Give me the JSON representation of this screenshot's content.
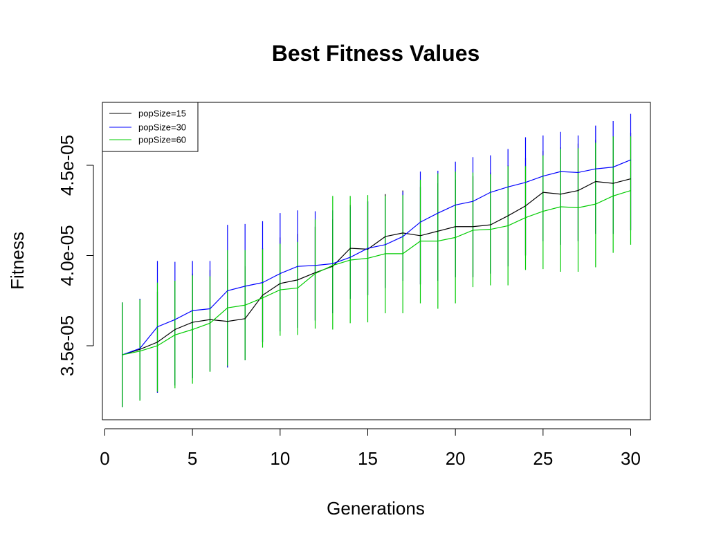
{
  "chart_data": {
    "type": "line",
    "title": "Best Fitness Values",
    "xlabel": "Generations",
    "ylabel": "Fitness",
    "xlim": [
      0,
      30
    ],
    "ylim": [
      3.1e-05,
      4.85e-05
    ],
    "x_ticks": [
      0,
      5,
      10,
      15,
      20,
      25,
      30
    ],
    "x_tick_labels": [
      "0",
      "5",
      "10",
      "15",
      "20",
      "25",
      "30"
    ],
    "y_ticks": [
      3.5e-05,
      4e-05,
      4.5e-05
    ],
    "y_tick_labels": [
      "3.5e-05",
      "4.0e-05",
      "4.5e-05"
    ],
    "grid": false,
    "legend_position": "top-left",
    "x": [
      1,
      2,
      3,
      4,
      5,
      6,
      7,
      8,
      9,
      10,
      11,
      12,
      13,
      14,
      15,
      16,
      17,
      18,
      19,
      20,
      21,
      22,
      23,
      24,
      25,
      26,
      27,
      28,
      29,
      30
    ],
    "series": [
      {
        "name": "popSize=15",
        "color": "#000000",
        "values": [
          3.45e-05,
          3.48e-05,
          3.52e-05,
          3.59e-05,
          3.63e-05,
          3.645e-05,
          3.635e-05,
          3.65e-05,
          3.78e-05,
          3.845e-05,
          3.865e-05,
          3.905e-05,
          3.94e-05,
          4.04e-05,
          4.035e-05,
          4.105e-05,
          4.125e-05,
          4.11e-05,
          4.135e-05,
          4.16e-05,
          4.16e-05,
          4.17e-05,
          4.22e-05,
          4.275e-05,
          4.35e-05,
          4.34e-05,
          4.36e-05,
          4.41e-05,
          4.4e-05,
          4.425e-05
        ],
        "upper": [
          3.74e-05,
          3.76e-05,
          3.8e-05,
          3.86e-05,
          3.9e-05,
          3.92e-05,
          3.92e-05,
          3.94e-05,
          4.04e-05,
          4.1e-05,
          4.12e-05,
          4.16e-05,
          4.2e-05,
          4.28e-05,
          4.3e-05,
          4.34e-05,
          4.36e-05,
          4.38e-05,
          4.4e-05,
          4.42e-05,
          4.44e-05,
          4.46e-05,
          4.5e-05,
          4.54e-05,
          4.58e-05,
          4.6e-05,
          4.62e-05,
          4.64e-05,
          4.66e-05,
          4.68e-05
        ],
        "lower": [
          3.16e-05,
          3.2e-05,
          3.24e-05,
          3.28e-05,
          3.32e-05,
          3.36e-05,
          3.38e-05,
          3.42e-05,
          3.52e-05,
          3.58e-05,
          3.6e-05,
          3.64e-05,
          3.68e-05,
          3.76e-05,
          3.78e-05,
          3.82e-05,
          3.86e-05,
          3.84e-05,
          3.86e-05,
          3.88e-05,
          3.88e-05,
          3.9e-05,
          3.94e-05,
          4e-05,
          4.08e-05,
          4.06e-05,
          4.08e-05,
          4.12e-05,
          4.12e-05,
          4.14e-05
        ]
      },
      {
        "name": "popSize=30",
        "color": "#0000ff",
        "values": [
          3.45e-05,
          3.485e-05,
          3.605e-05,
          3.645e-05,
          3.695e-05,
          3.705e-05,
          3.805e-05,
          3.83e-05,
          3.85e-05,
          3.9e-05,
          3.94e-05,
          3.945e-05,
          3.955e-05,
          3.99e-05,
          4.04e-05,
          4.06e-05,
          4.105e-05,
          4.185e-05,
          4.235e-05,
          4.28e-05,
          4.3e-05,
          4.35e-05,
          4.38e-05,
          4.405e-05,
          4.44e-05,
          4.465e-05,
          4.46e-05,
          4.48e-05,
          4.49e-05,
          4.53e-05
        ],
        "upper": [
          3.74e-05,
          3.76e-05,
          3.97e-05,
          3.965e-05,
          3.97e-05,
          3.97e-05,
          4.17e-05,
          4.175e-05,
          4.19e-05,
          4.235e-05,
          4.25e-05,
          4.245e-05,
          4.25e-05,
          4.27e-05,
          4.3e-05,
          4.32e-05,
          4.355e-05,
          4.465e-05,
          4.47e-05,
          4.52e-05,
          4.545e-05,
          4.555e-05,
          4.59e-05,
          4.655e-05,
          4.665e-05,
          4.685e-05,
          4.665e-05,
          4.72e-05,
          4.745e-05,
          4.785e-05
        ],
        "lower": [
          3.16e-05,
          3.2e-05,
          3.24e-05,
          3.28e-05,
          3.32e-05,
          3.36e-05,
          3.38e-05,
          3.42e-05,
          3.52e-05,
          3.58e-05,
          3.6e-05,
          3.64e-05,
          3.68e-05,
          3.76e-05,
          3.78e-05,
          3.82e-05,
          3.86e-05,
          3.84e-05,
          3.86e-05,
          3.88e-05,
          3.88e-05,
          3.9e-05,
          3.94e-05,
          4e-05,
          4.08e-05,
          4.06e-05,
          4.08e-05,
          4.12e-05,
          4.12e-05,
          4.14e-05
        ]
      },
      {
        "name": "popSize=60",
        "color": "#00cc00",
        "values": [
          3.45e-05,
          3.47e-05,
          3.5e-05,
          3.56e-05,
          3.59e-05,
          3.625e-05,
          3.71e-05,
          3.725e-05,
          3.765e-05,
          3.81e-05,
          3.82e-05,
          3.9e-05,
          3.945e-05,
          3.975e-05,
          3.985e-05,
          4.01e-05,
          4.01e-05,
          4.08e-05,
          4.08e-05,
          4.1e-05,
          4.14e-05,
          4.145e-05,
          4.165e-05,
          4.21e-05,
          4.245e-05,
          4.27e-05,
          4.265e-05,
          4.285e-05,
          4.33e-05,
          4.36e-05
        ],
        "upper": [
          3.74e-05,
          3.755e-05,
          3.85e-05,
          3.86e-05,
          3.89e-05,
          3.885e-05,
          4.03e-05,
          4.03e-05,
          4.035e-05,
          4.065e-05,
          4.075e-05,
          4.2e-05,
          4.33e-05,
          4.33e-05,
          4.335e-05,
          4.33e-05,
          4.335e-05,
          4.42e-05,
          4.455e-05,
          4.465e-05,
          4.46e-05,
          4.45e-05,
          4.495e-05,
          4.495e-05,
          4.555e-05,
          4.59e-05,
          4.595e-05,
          4.625e-05,
          4.66e-05,
          4.66e-05
        ],
        "lower": [
          3.16e-05,
          3.195e-05,
          3.245e-05,
          3.265e-05,
          3.29e-05,
          3.355e-05,
          3.39e-05,
          3.42e-05,
          3.49e-05,
          3.555e-05,
          3.56e-05,
          3.595e-05,
          3.59e-05,
          3.625e-05,
          3.63e-05,
          3.68e-05,
          3.68e-05,
          3.735e-05,
          3.705e-05,
          3.735e-05,
          3.825e-05,
          3.835e-05,
          3.835e-05,
          3.92e-05,
          3.925e-05,
          3.91e-05,
          3.91e-05,
          3.935e-05,
          4.015e-05,
          4.06e-05
        ]
      }
    ]
  }
}
